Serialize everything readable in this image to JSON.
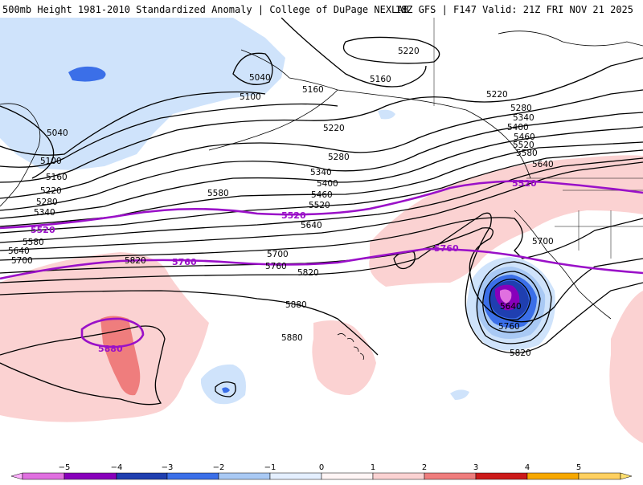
{
  "header": {
    "title": "500mb Height 1981-2010 Standardized Anomaly | College of DuPage NEXLAB",
    "run_info": "18Z GFS | F147 Valid: 21Z FRI NOV 21 2025"
  },
  "colors": {
    "neg5": "#e070e0",
    "neg4": "#8800bb",
    "neg3": "#1f3fb0",
    "neg2": "#3b6fe8",
    "neg1": "#a9c9f4",
    "neg05": "#cfe3fb",
    "pos05": "#fbd2d2",
    "pos1": "#f5b3b3",
    "pos2": "#ef7d7d",
    "pos3": "#cc1a1a",
    "pos4": "#9a0000",
    "pos5": "#f7a800",
    "contour": "#000000",
    "highlight_contour": "#9a10c8"
  },
  "contour_labels": [
    "5220",
    "5160",
    "5040",
    "5100",
    "5040",
    "5160",
    "5220",
    "5220",
    "5280",
    "5340",
    "5400",
    "5460",
    "5520",
    "5580",
    "5640",
    "5280",
    "5340",
    "5400",
    "5460",
    "5520",
    "5580",
    "5640",
    "5700",
    "5760",
    "5820",
    "5880",
    "5880",
    "5820",
    "5700",
    "5640",
    "5760",
    "5820",
    "5100",
    "5160",
    "5220",
    "5280",
    "5340",
    "5580",
    "5640",
    "5700"
  ],
  "highlight_labels": [
    "5520",
    "5520",
    "5520",
    "5760",
    "5760",
    "5880"
  ],
  "legend": {
    "ticks": [
      "−5",
      "−4",
      "−3",
      "−2",
      "−1",
      "0",
      "1",
      "2",
      "3",
      "4",
      "5"
    ]
  }
}
